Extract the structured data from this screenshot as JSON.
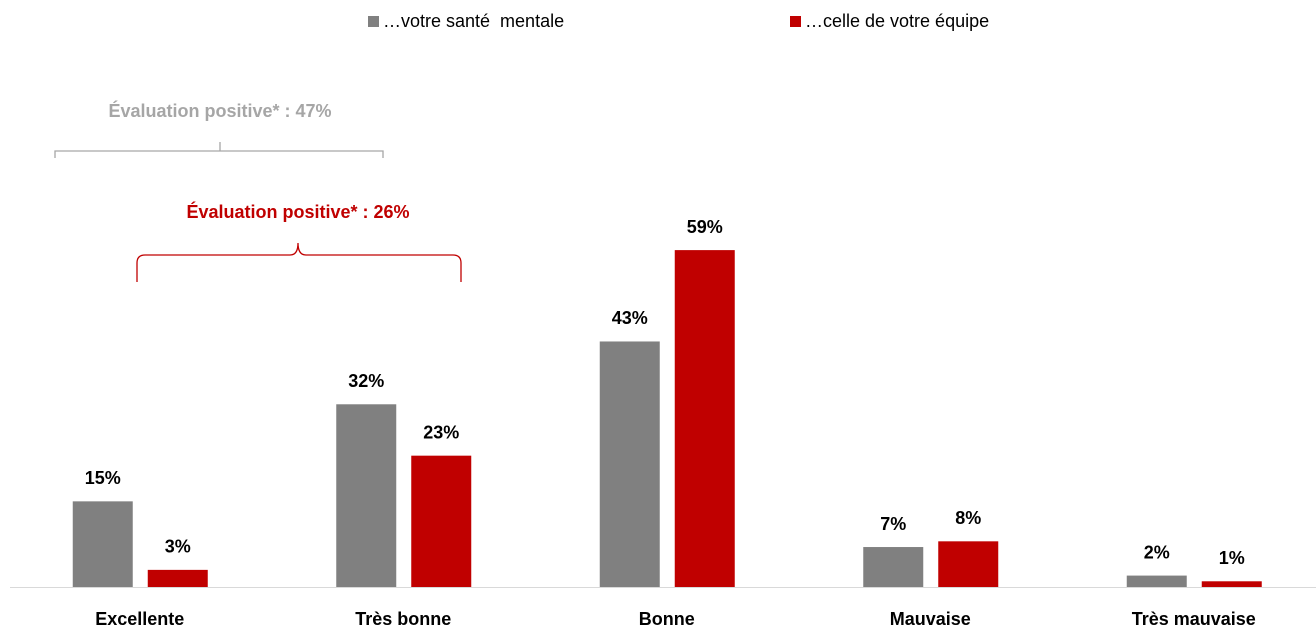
{
  "chart_data": {
    "type": "bar",
    "categories": [
      "Excellente",
      "Très bonne",
      "Bonne",
      "Mauvaise",
      "Très mauvaise"
    ],
    "series": [
      {
        "name": "…votre santé  mentale",
        "color": "#808080",
        "values": [
          15,
          32,
          43,
          7,
          2
        ],
        "value_labels": [
          "15%",
          "32%",
          "43%",
          "7%",
          "2%"
        ]
      },
      {
        "name": "…celle de votre équipe",
        "color": "#c00000",
        "values": [
          3,
          23,
          59,
          8,
          1
        ],
        "value_labels": [
          "3%",
          "23%",
          "59%",
          "8%",
          "1%"
        ]
      }
    ],
    "ylim": [
      0,
      60
    ],
    "annotations": [
      {
        "text": "Évaluation positive* : 47%",
        "color": "#a6a6a6"
      },
      {
        "text": "Évaluation positive* : 26%",
        "color": "#c00000"
      }
    ],
    "legend": "top"
  }
}
